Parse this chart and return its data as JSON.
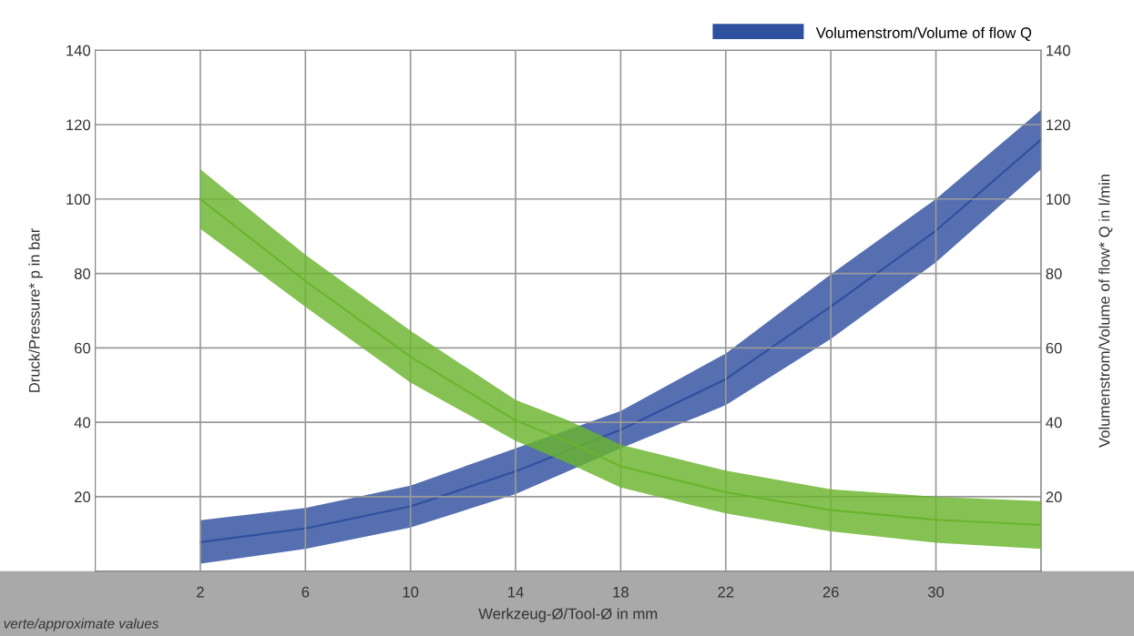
{
  "chart_data": {
    "type": "line",
    "xlabel": "Werkzeug-Ø/Tool-Ø in mm",
    "ylabel": "Druck/Pressure* p in bar",
    "y2label": "Volumenstrom/Volume of flow* Q in l/min",
    "x": [
      2,
      6,
      10,
      14,
      16,
      18,
      22,
      26,
      30,
      34
    ],
    "xlim": [
      -2,
      34
    ],
    "xticks": [
      2,
      6,
      10,
      14,
      18,
      22,
      26,
      30
    ],
    "ylim": [
      0,
      140
    ],
    "yticks": [
      20,
      40,
      60,
      80,
      100,
      120,
      140
    ],
    "y2lim": [
      0,
      140
    ],
    "y2ticks": [
      20,
      40,
      60,
      80,
      100,
      120,
      140
    ],
    "series": [
      {
        "color": "#6ab42d",
        "values": [
          100,
          78,
          57.6,
          40.5,
          34.8,
          28.2,
          21.2,
          16.4,
          13.8,
          12.4
        ],
        "upper": [
          108,
          85,
          64.6,
          46,
          40.5,
          34,
          27,
          22,
          20,
          18.8
        ],
        "lower": [
          92,
          71,
          50.7,
          35,
          29,
          22.5,
          15.5,
          10.7,
          7.6,
          6
        ]
      },
      {
        "name": "Volumenstrom/Volume of flow Q",
        "color": "#2f4f9f",
        "axis": "y2",
        "x": [
          2,
          6,
          10,
          14,
          18,
          22,
          26,
          30,
          34
        ],
        "values": [
          7.8,
          11.5,
          17.4,
          26.8,
          38,
          51.6,
          71.1,
          91.5,
          116
        ],
        "upper": [
          13.7,
          17,
          23,
          33,
          43,
          58.5,
          79.8,
          100,
          124
        ],
        "lower": [
          2,
          6,
          11.7,
          20.7,
          33,
          44.6,
          62.4,
          83,
          108
        ]
      }
    ],
    "grid": true,
    "legend": "top right",
    "annotations": [
      "verte/approximate values"
    ]
  }
}
